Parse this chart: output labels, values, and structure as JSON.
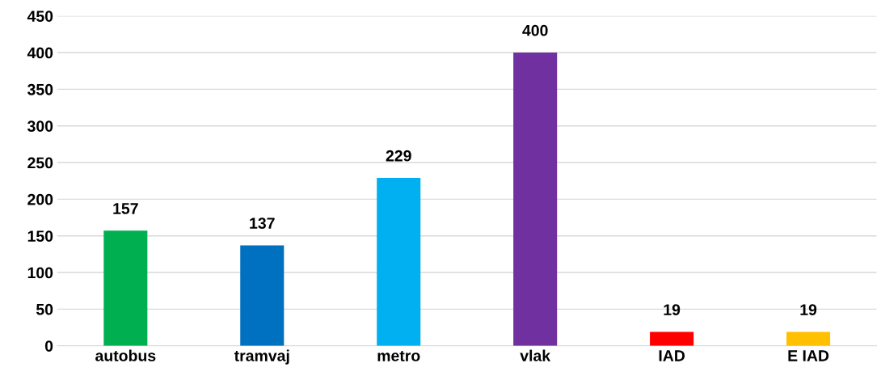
{
  "chart_data": {
    "type": "bar",
    "categories": [
      "autobus",
      "tramvaj",
      "metro",
      "vlak",
      "IAD",
      "E IAD"
    ],
    "values": [
      157,
      137,
      229,
      400,
      19,
      19
    ],
    "colors": [
      "#00b050",
      "#0070c0",
      "#00b0f0",
      "#7030a0",
      "#ff0000",
      "#ffc000"
    ],
    "ylim": [
      0,
      450
    ],
    "yticks": [
      0,
      50,
      100,
      150,
      200,
      250,
      300,
      350,
      400,
      450
    ],
    "grid": "y",
    "data_labels": true
  }
}
